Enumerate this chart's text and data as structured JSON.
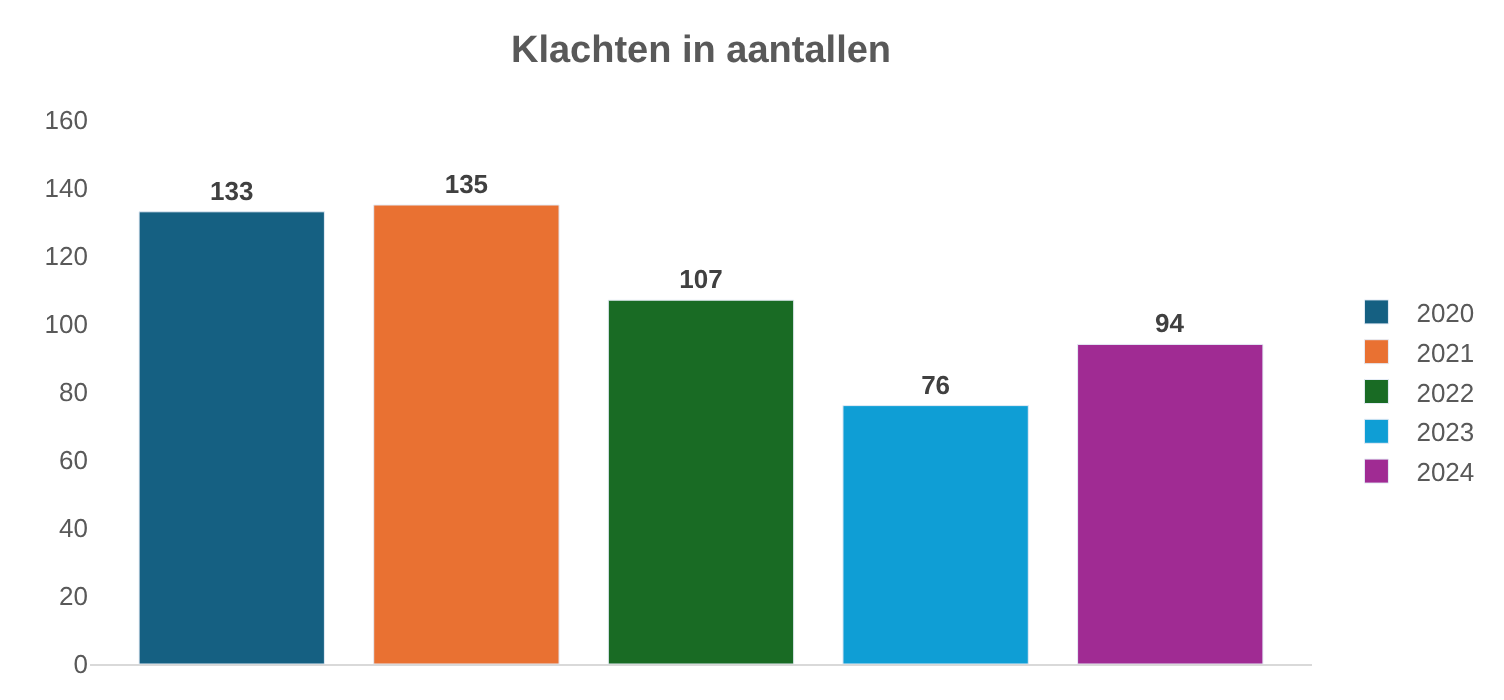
{
  "chart_data": {
    "type": "bar",
    "title": "Klachten in aantallen",
    "categories": [
      null
    ],
    "series": [
      {
        "name": "2020",
        "color": "#156082",
        "values": [
          133
        ]
      },
      {
        "name": "2021",
        "color": "#e97132",
        "values": [
          135
        ]
      },
      {
        "name": "2022",
        "color": "#196b24",
        "values": [
          107
        ]
      },
      {
        "name": "2023",
        "color": "#0f9ed5",
        "values": [
          76
        ]
      },
      {
        "name": "2024",
        "color": "#a02b93",
        "values": [
          94
        ]
      }
    ],
    "ylim": [
      0,
      160
    ],
    "yticks": [
      0,
      20,
      40,
      60,
      80,
      100,
      120,
      140,
      160
    ],
    "legend": "right",
    "data_labels": true,
    "tick_labels": "y"
  }
}
